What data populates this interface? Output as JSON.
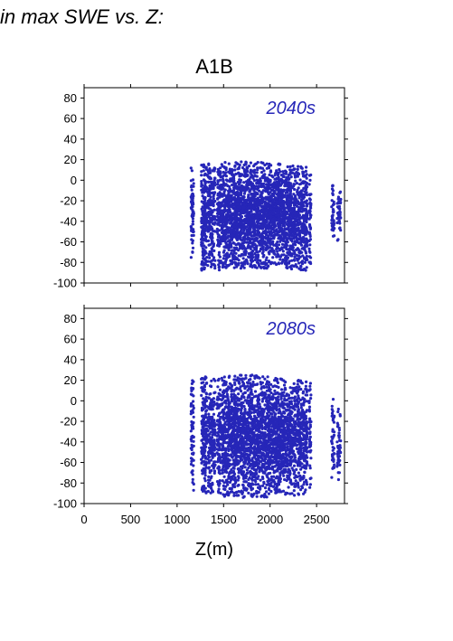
{
  "figure": {
    "title_fragment": "in max SWE vs. Z:",
    "scenario": "A1B"
  },
  "colors": {
    "points": "#2626b8",
    "axes": "#000000"
  },
  "chart_data": [
    {
      "type": "scatter",
      "panel_label": "2040s",
      "xlabel": "",
      "ylabel": "",
      "xlim": [
        0,
        2800
      ],
      "ylim": [
        -100,
        90
      ],
      "yticks": [
        -100,
        -80,
        -60,
        -40,
        -20,
        0,
        20,
        40,
        60,
        80
      ],
      "xticks": [],
      "grid": false,
      "elevation_bands": [
        {
          "x": [
            1150,
            1180
          ],
          "y": [
            -78,
            12
          ],
          "n": 60
        },
        {
          "x": [
            1260,
            1320
          ],
          "y": [
            -88,
            17
          ],
          "n": 180
        },
        {
          "x": [
            1330,
            1410
          ],
          "y": [
            -86,
            16
          ],
          "n": 200
        },
        {
          "x": [
            1430,
            1470
          ],
          "y": [
            -88,
            15
          ],
          "n": 110
        },
        {
          "x": [
            1480,
            2000
          ],
          "y": [
            -86,
            18
          ],
          "n": 1500
        },
        {
          "x": [
            2000,
            2150
          ],
          "y": [
            -82,
            16
          ],
          "n": 450
        },
        {
          "x": [
            2150,
            2400
          ],
          "y": [
            -88,
            14
          ],
          "n": 650
        },
        {
          "x": [
            2420,
            2440
          ],
          "y": [
            -82,
            8
          ],
          "n": 45
        },
        {
          "x": [
            2660,
            2690
          ],
          "y": [
            -58,
            -2
          ],
          "n": 40
        },
        {
          "x": [
            2720,
            2760
          ],
          "y": [
            -60,
            -2
          ],
          "n": 45
        }
      ]
    },
    {
      "type": "scatter",
      "panel_label": "2080s",
      "xlabel": "Z(m)",
      "ylabel": "",
      "xlim": [
        0,
        2800
      ],
      "ylim": [
        -100,
        90
      ],
      "yticks": [
        -100,
        -80,
        -60,
        -40,
        -20,
        0,
        20,
        40,
        60,
        80
      ],
      "xticks": [
        0,
        500,
        1000,
        1500,
        2000,
        2500
      ],
      "grid": false,
      "elevation_bands": [
        {
          "x": [
            1150,
            1180
          ],
          "y": [
            -88,
            20
          ],
          "n": 65
        },
        {
          "x": [
            1260,
            1320
          ],
          "y": [
            -90,
            24
          ],
          "n": 190
        },
        {
          "x": [
            1330,
            1410
          ],
          "y": [
            -90,
            22
          ],
          "n": 200
        },
        {
          "x": [
            1430,
            1470
          ],
          "y": [
            -92,
            22
          ],
          "n": 110
        },
        {
          "x": [
            1480,
            2000
          ],
          "y": [
            -94,
            25
          ],
          "n": 1550
        },
        {
          "x": [
            2000,
            2150
          ],
          "y": [
            -90,
            22
          ],
          "n": 460
        },
        {
          "x": [
            2150,
            2400
          ],
          "y": [
            -92,
            20
          ],
          "n": 650
        },
        {
          "x": [
            2420,
            2440
          ],
          "y": [
            -86,
            18
          ],
          "n": 45
        },
        {
          "x": [
            2660,
            2690
          ],
          "y": [
            -82,
            2
          ],
          "n": 45
        },
        {
          "x": [
            2720,
            2760
          ],
          "y": [
            -80,
            -8
          ],
          "n": 45
        }
      ]
    }
  ]
}
